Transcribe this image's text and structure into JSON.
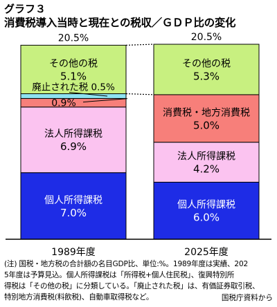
{
  "title_line1": "グラフ３",
  "title_line2": "消費税導入当時と現在との税収／ＧＤＰ比の変化",
  "chart_data": {
    "type": "bar",
    "stacked": true,
    "unit": "%",
    "categories": [
      "1989年度",
      "2025年度"
    ],
    "totals": [
      "20.5%",
      "20.5%"
    ],
    "ylim": [
      0,
      20.5
    ],
    "bars": [
      {
        "category": "1989年度",
        "segments": [
          {
            "label": "個人所得課税",
            "value_label": "7.0%",
            "value": 7.0,
            "color": "#1E2CE6",
            "text_color": "#ffffff"
          },
          {
            "label": "法人所得課税",
            "value_label": "6.9%",
            "value": 6.9,
            "color": "#FBC3F0",
            "text_color": "#000000"
          },
          {
            "label": "",
            "value_label": "0.9%",
            "value": 0.9,
            "color": "#F77F7A",
            "text_color": "#000000"
          },
          {
            "label": "廃止された税",
            "value_label": "0.5%",
            "value": 0.5,
            "color": "#8EE3F1",
            "text_color": "#000000"
          },
          {
            "label": "その他の税",
            "value_label": "5.1%",
            "value": 5.1,
            "color": "#C8F080",
            "text_color": "#000000"
          }
        ]
      },
      {
        "category": "2025年度",
        "segments": [
          {
            "label": "個人所得課税",
            "value_label": "6.0%",
            "value": 6.0,
            "color": "#1E2CE6",
            "text_color": "#ffffff"
          },
          {
            "label": "法人所得課税",
            "value_label": "4.2%",
            "value": 4.2,
            "color": "#FBC3F0",
            "text_color": "#000000"
          },
          {
            "label": "消費税・地方消費税",
            "value_label": "5.0%",
            "value": 5.0,
            "color": "#F77F7A",
            "text_color": "#000000"
          },
          {
            "label": "その他の税",
            "value_label": "5.3%",
            "value": 5.3,
            "color": "#C8F080",
            "text_color": "#000000"
          }
        ]
      }
    ]
  },
  "notes": [
    "(注) 国税・地方税の合計額の名目GDP比、単位:%。1989年度は実績、202",
    "5年度は予算見込。個人所得課税は「所得税+個人住民税」、復興特別所",
    "得税は「その他の税」に分類している。「廃止された税」は、有価証券取引税、",
    "特別地方消費税(料飲税)、自動車取得税など。"
  ],
  "source": "国税庁資料から"
}
